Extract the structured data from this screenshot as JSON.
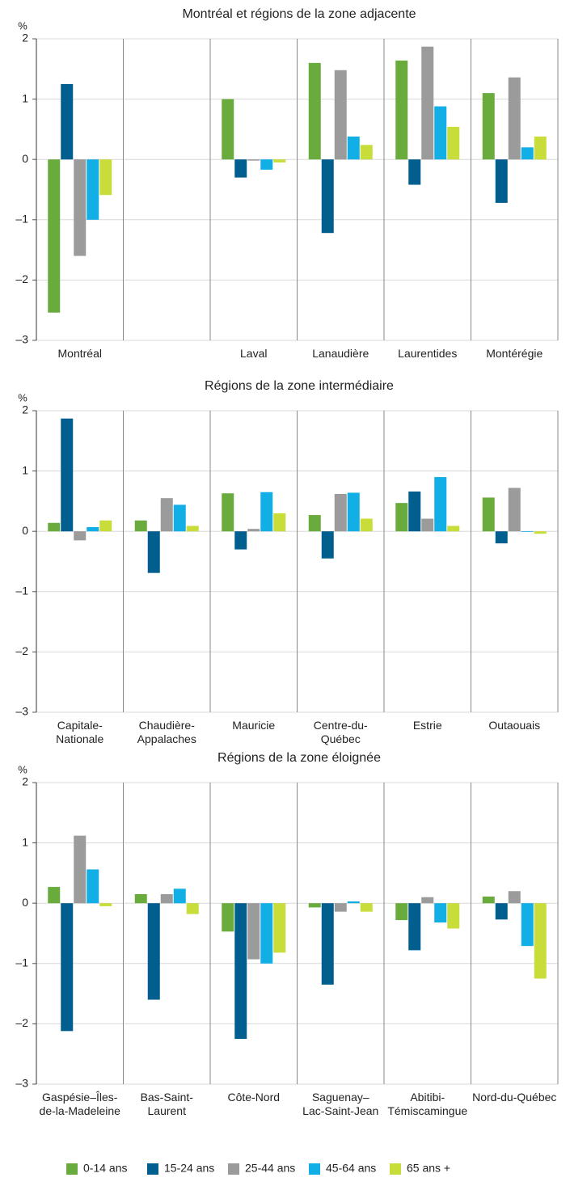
{
  "chart_data": [
    {
      "type": "bar",
      "title": "Montréal et régions de la zone adjacente",
      "y_label": "%",
      "categories": [
        "Montréal",
        null,
        "Laval",
        "Lanaudière",
        "Laurentides",
        "Montérégie"
      ],
      "series": [
        {
          "name": "0-14 ans",
          "color": "#6aab3d",
          "values": [
            -2.54,
            null,
            1.0,
            1.6,
            1.64,
            1.1
          ]
        },
        {
          "name": "15-24 ans",
          "color": "#005f8f",
          "values": [
            1.25,
            null,
            -0.3,
            -1.22,
            -0.42,
            -0.72
          ]
        },
        {
          "name": "25-44 ans",
          "color": "#9b9b9b",
          "values": [
            -1.6,
            null,
            -0.02,
            1.48,
            1.87,
            1.36
          ]
        },
        {
          "name": "45-64 ans",
          "color": "#12aee6",
          "values": [
            -1.0,
            null,
            -0.17,
            0.38,
            0.88,
            0.2
          ]
        },
        {
          "name": "65 ans +",
          "color": "#c9dd3a",
          "values": [
            -0.59,
            null,
            -0.05,
            0.24,
            0.54,
            0.38
          ]
        }
      ],
      "ylim": [
        -3,
        2
      ],
      "yticks": [
        {
          "value": -3,
          "label": "–3"
        },
        {
          "value": -2,
          "label": "–2"
        },
        {
          "value": -1,
          "label": "–1"
        },
        0,
        1,
        2
      ],
      "grid": true
    },
    {
      "type": "bar",
      "title": "Régions de la zone intermédiaire",
      "y_label": "%",
      "categories": [
        "Capitale-\nNationale",
        "Chaudière-\nAppalaches",
        "Mauricie",
        "Centre-du-\nQuébec",
        "Estrie",
        "Outaouais"
      ],
      "series": [
        {
          "values": [
            0.14,
            0.18,
            0.63,
            0.27,
            0.47,
            0.56
          ]
        },
        {
          "values": [
            1.87,
            -0.69,
            -0.3,
            -0.45,
            0.66,
            -0.2
          ]
        },
        {
          "values": [
            -0.15,
            0.55,
            0.04,
            0.62,
            0.21,
            0.72
          ]
        },
        {
          "values": [
            0.07,
            0.44,
            0.65,
            0.64,
            0.9,
            -0.01
          ]
        },
        {
          "values": [
            0.18,
            0.09,
            0.3,
            0.21,
            0.09,
            -0.04
          ]
        }
      ],
      "ylim": [
        -3,
        2
      ],
      "yticks": [
        {
          "value": -3,
          "label": "–3"
        },
        {
          "value": -2,
          "label": "–2"
        },
        {
          "value": -1,
          "label": "–1"
        },
        0,
        1,
        2
      ],
      "grid": true
    },
    {
      "type": "bar",
      "title": "Régions de la zone éloignée",
      "y_label": "%",
      "categories": [
        "Gaspésie–Îles-\nde-la-Madeleine",
        "Bas-Saint-\nLaurent",
        "Côte-Nord",
        "Saguenay–\nLac-Saint-Jean",
        "Abitibi-\nTémiscamingue",
        "Nord-du-Québec"
      ],
      "series": [
        {
          "values": [
            0.27,
            0.15,
            -0.47,
            -0.07,
            -0.28,
            0.11
          ]
        },
        {
          "values": [
            -2.12,
            -1.6,
            -2.25,
            -1.35,
            -0.78,
            -0.27
          ]
        },
        {
          "values": [
            1.12,
            0.15,
            -0.93,
            -0.14,
            0.1,
            0.2
          ]
        },
        {
          "values": [
            0.56,
            0.24,
            -1.0,
            0.03,
            -0.32,
            -0.71
          ]
        },
        {
          "values": [
            -0.05,
            -0.18,
            -0.82,
            -0.14,
            -0.42,
            -1.25
          ]
        }
      ],
      "ylim": [
        -3,
        2
      ],
      "yticks": [
        {
          "value": -3,
          "label": "–3"
        },
        {
          "value": -2,
          "label": "–2"
        },
        {
          "value": -1,
          "label": "–1"
        },
        0,
        1,
        2
      ],
      "grid": true
    }
  ]
}
